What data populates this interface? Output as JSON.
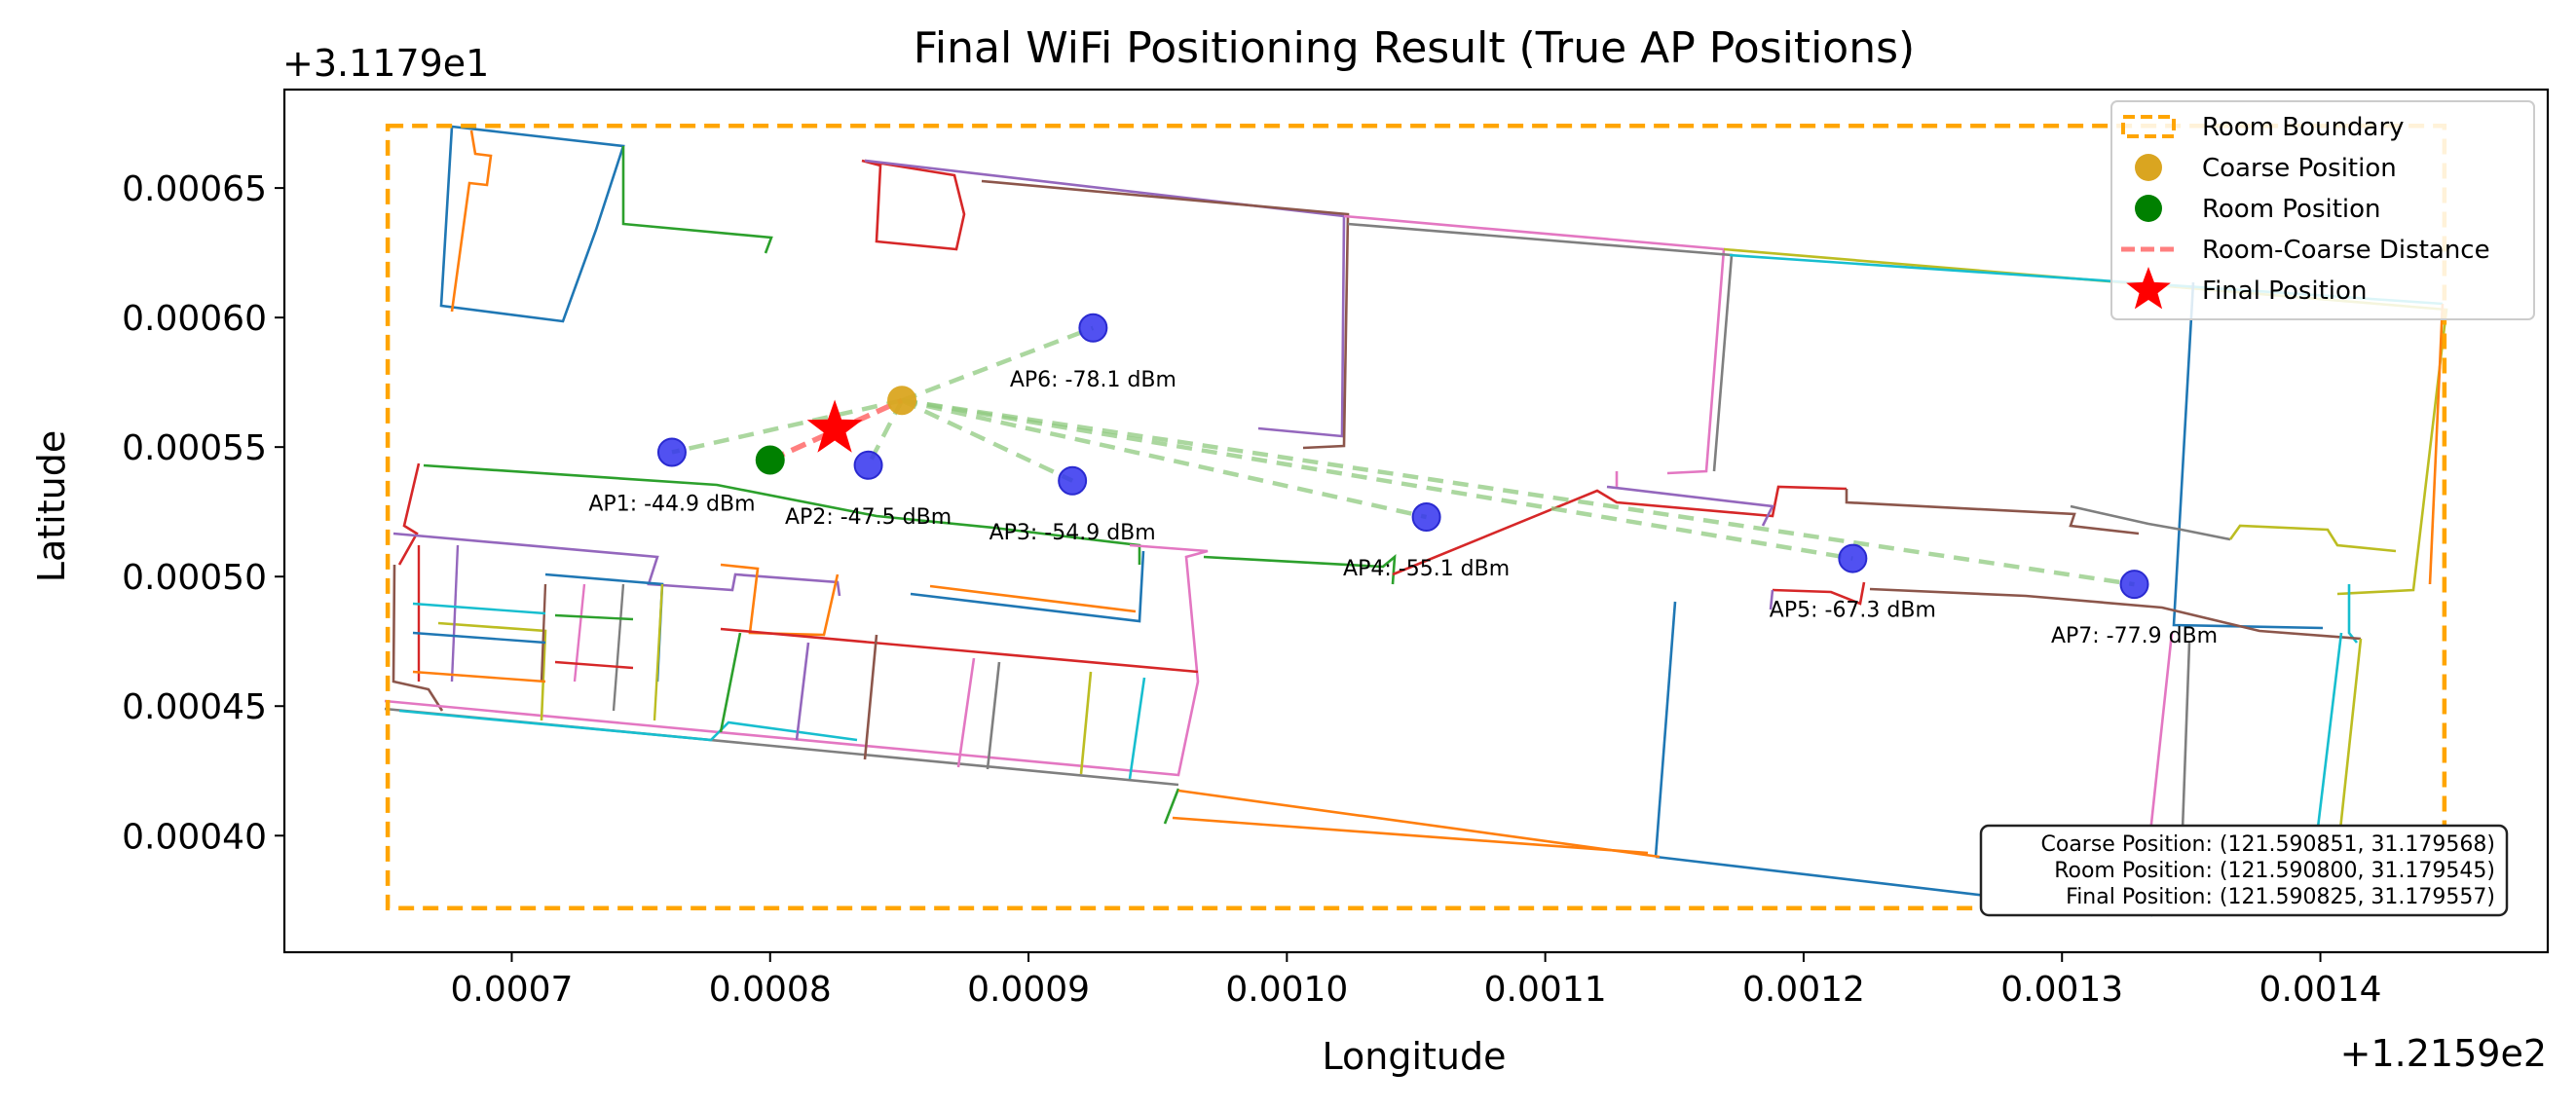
{
  "chart_data": {
    "type": "scatter",
    "title": "Final WiFi Positioning Result (True AP Positions)",
    "xlabel": "Longitude",
    "ylabel": "Latitude",
    "x_offset": "+1.2159e2",
    "y_offset": "+3.1179e1",
    "xlim": [
      0.000612,
      0.001488
    ],
    "ylim": [
      0.000355,
      0.000688
    ],
    "x_ticks": [
      0.0007,
      0.0008,
      0.0009,
      0.001,
      0.0011,
      0.0012,
      0.0013,
      0.0014
    ],
    "x_tick_labels": [
      "0.0007",
      "0.0008",
      "0.0009",
      "0.0010",
      "0.0011",
      "0.0012",
      "0.0013",
      "0.0014"
    ],
    "y_ticks": [
      0.0004,
      0.00045,
      0.0005,
      0.00055,
      0.0006,
      0.00065
    ],
    "y_tick_labels": [
      "0.00040",
      "0.00045",
      "0.00050",
      "0.00055",
      "0.00060",
      "0.00065"
    ],
    "grid": false,
    "legend_position": "top-right",
    "room_boundary": {
      "x0": 0.000652,
      "x1": 0.001448,
      "y0": 0.000372,
      "y1": 0.000674,
      "color": "#ffa500"
    },
    "access_points": [
      {
        "name": "AP1",
        "label": "AP1: -44.9 dBm",
        "x": 0.000762,
        "y": 0.000548
      },
      {
        "name": "AP2",
        "label": "AP2: -47.5 dBm",
        "x": 0.000838,
        "y": 0.000543
      },
      {
        "name": "AP3",
        "label": "AP3: -54.9 dBm",
        "x": 0.000917,
        "y": 0.000537
      },
      {
        "name": "AP4",
        "label": "AP4: -55.1 dBm",
        "x": 0.001054,
        "y": 0.000523
      },
      {
        "name": "AP5",
        "label": "AP5: -67.3 dBm",
        "x": 0.001219,
        "y": 0.000507
      },
      {
        "name": "AP6",
        "label": "AP6: -78.1 dBm",
        "x": 0.000925,
        "y": 0.000596
      },
      {
        "name": "AP7",
        "label": "AP7: -77.9 dBm",
        "x": 0.001328,
        "y": 0.000497
      }
    ],
    "coarse_position": {
      "x": 0.000851,
      "y": 0.000568
    },
    "room_position": {
      "x": 0.0008,
      "y": 0.000545
    },
    "final_position": {
      "x": 0.000825,
      "y": 0.000557
    },
    "legend": [
      {
        "key": "room_boundary",
        "label": "Room Boundary"
      },
      {
        "key": "coarse",
        "label": "Coarse Position"
      },
      {
        "key": "room",
        "label": "Room Position"
      },
      {
        "key": "distance",
        "label": "Room-Coarse Distance"
      },
      {
        "key": "final",
        "label": "Final Position"
      }
    ],
    "info_box": [
      "Coarse Position: (121.590851, 31.179568)",
      "Room Position: (121.590800, 31.179545)",
      "Final Position: (121.590825, 31.179557)"
    ],
    "colors": {
      "ap": "#3333ee",
      "coarse": "#daa520",
      "room": "#008000",
      "final": "#ff0000",
      "distance": "#ff7f7f",
      "ap_lines": "#8fca80"
    },
    "floorplan_palette": [
      "#1f77b4",
      "#ff7f0e",
      "#2ca02c",
      "#d62728",
      "#9467bd",
      "#8c564b",
      "#e377c2",
      "#7f7f7f",
      "#bcbd22",
      "#17becf"
    ]
  }
}
